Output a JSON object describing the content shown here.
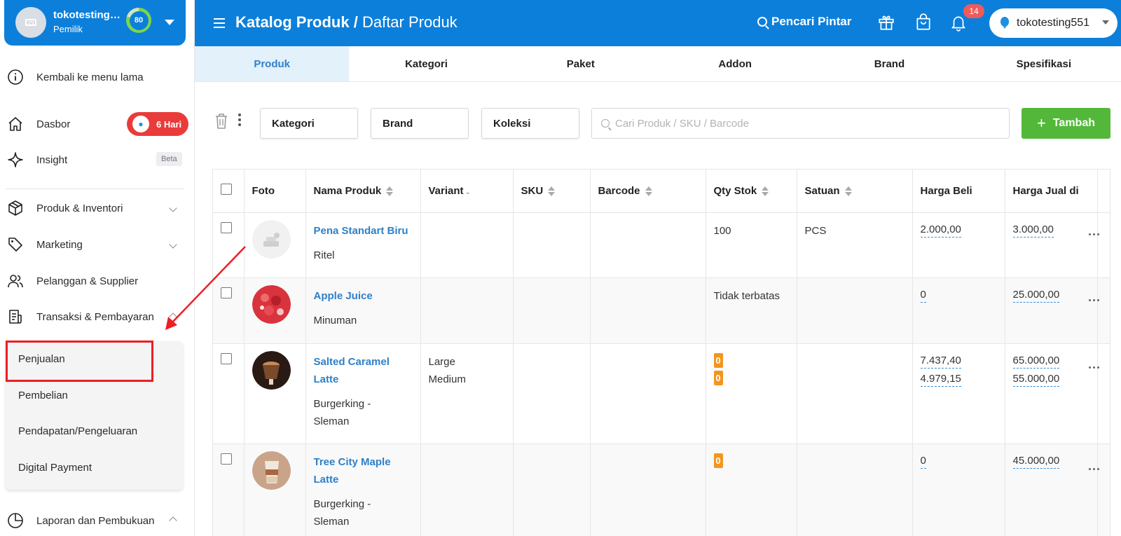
{
  "sidebar": {
    "store_name": "tokotesting551",
    "role": "Pemilik",
    "score": "80",
    "items": [
      {
        "label": "Kembali ke menu lama",
        "icon": "info-icon"
      },
      {
        "label": "Dasbor",
        "icon": "home-icon",
        "badge": "6 Hari"
      },
      {
        "label": "Insight",
        "icon": "sparkle-icon",
        "badge": "Beta"
      },
      {
        "label": "Produk & Inventori",
        "icon": "box-icon"
      },
      {
        "label": "Marketing",
        "icon": "tag-icon"
      },
      {
        "label": "Pelanggan & Supplier",
        "icon": "users-icon"
      },
      {
        "label": "Transaksi & Pembayaran",
        "icon": "receipt-icon"
      },
      {
        "label": "Laporan dan Pembukuan",
        "icon": "pie-chart-icon"
      }
    ],
    "submenu": [
      "Penjualan",
      "Pembelian",
      "Pendapatan/Pengeluaran",
      "Digital Payment"
    ]
  },
  "header": {
    "title": "Katalog Produk",
    "separator": "/",
    "subtitle": "Daftar Produk",
    "smart_search": "Pencari Pintar",
    "notif_count": "14",
    "store_selector": "tokotesting551"
  },
  "tabs": [
    "Produk",
    "Kategori",
    "Paket",
    "Addon",
    "Brand",
    "Spesifikasi"
  ],
  "filters": {
    "kategori": "Kategori",
    "brand": "Brand",
    "koleksi": "Koleksi",
    "search_placeholder": "Cari Produk / SKU / Barcode",
    "add_label": "Tambah"
  },
  "table": {
    "headers": [
      "Foto",
      "Nama Produk",
      "Variant",
      "SKU",
      "Barcode",
      "Qty Stok",
      "Satuan",
      "Harga Beli",
      "Harga Jual di"
    ],
    "rows": [
      {
        "name": "Pena Standart Biru",
        "sub": "Ritel",
        "variants": [],
        "qty": "100",
        "unit": "PCS",
        "buy": [
          "2.000,00"
        ],
        "sell": [
          "3.000,00"
        ]
      },
      {
        "name": "Apple Juice",
        "sub": "Minuman",
        "variants": [],
        "qty": "Tidak terbatas",
        "unit": "",
        "buy": [
          "0"
        ],
        "sell": [
          "25.000,00"
        ]
      },
      {
        "name_lines": [
          "Salted Caramel",
          "Latte"
        ],
        "sub_lines": [
          "Burgerking -",
          "Sleman"
        ],
        "variants": [
          "Large",
          "Medium"
        ],
        "qty_badges": [
          "0",
          "0"
        ],
        "unit": "",
        "buy": [
          "7.437,40",
          "4.979,15"
        ],
        "sell": [
          "65.000,00",
          "55.000,00"
        ]
      },
      {
        "name_lines": [
          "Tree City Maple",
          "Latte"
        ],
        "sub_lines": [
          "Burgerking -",
          "Sleman"
        ],
        "variants": [],
        "qty_badges": [
          "0"
        ],
        "unit": "",
        "buy": [
          "0"
        ],
        "sell": [
          "45.000,00"
        ]
      }
    ]
  },
  "colors": {
    "primary": "#0c7fdb",
    "accent_green": "#53b83a",
    "danger": "#ea3b3b",
    "stock_badge": "#f3961e",
    "link": "#2f80c9"
  }
}
